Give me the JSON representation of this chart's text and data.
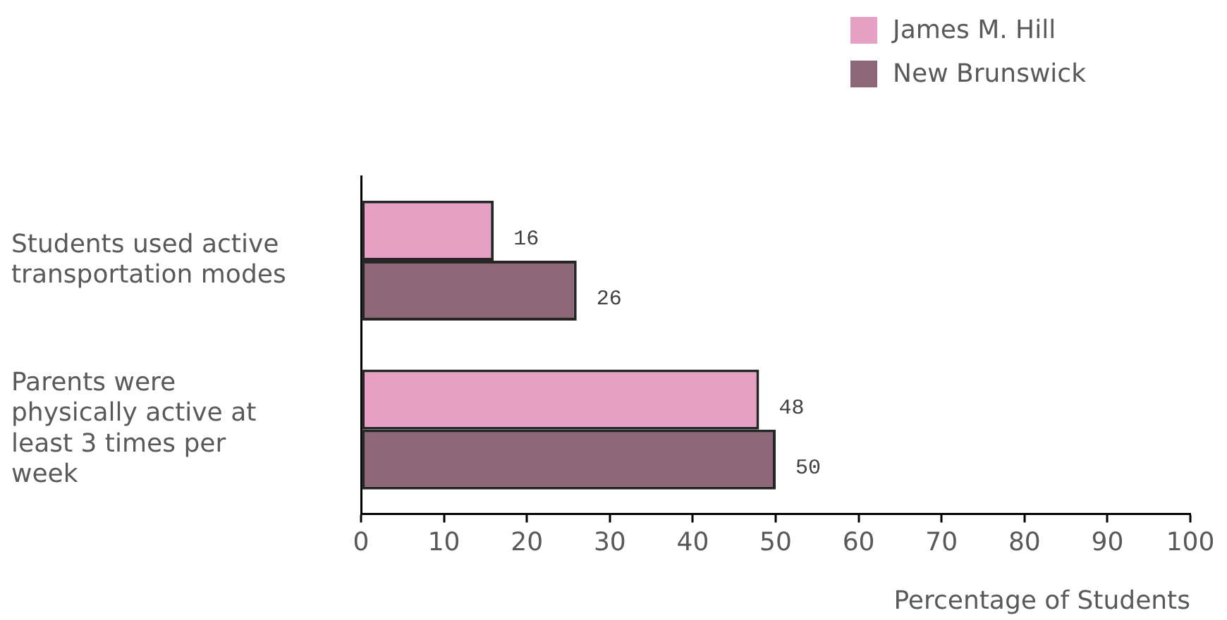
{
  "chart_data": {
    "type": "bar",
    "orientation": "horizontal",
    "categories": [
      "Students used active transportation modes",
      "Parents were physically active at least 3 times per week"
    ],
    "series": [
      {
        "name": "James M. Hill",
        "color": "#e6a0c4",
        "values": [
          16,
          48
        ]
      },
      {
        "name": "New Brunswick",
        "color": "#8d6677",
        "values": [
          26,
          50
        ]
      }
    ],
    "xlabel": "Percentage of Students",
    "xlim": [
      0,
      100
    ],
    "xticks": [
      0,
      10,
      20,
      30,
      40,
      50,
      60,
      70,
      80,
      90,
      100
    ],
    "data_labels": true,
    "legend": "top right",
    "grid": false
  }
}
